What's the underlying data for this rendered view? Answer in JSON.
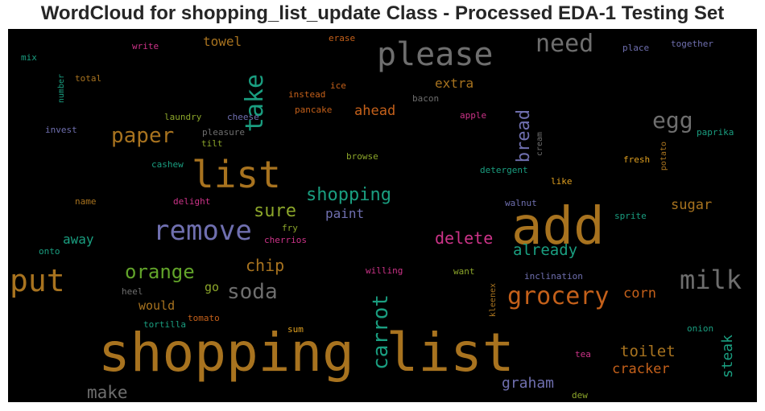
{
  "title": "WordCloud for shopping_list_update Class - Processed EDA-1 Testing Set",
  "chart_data": {
    "type": "wordcloud",
    "background": "#000000",
    "words": [
      {
        "text": "shopping list",
        "weight": 1.0,
        "color": "#A8731F"
      },
      {
        "text": "add",
        "weight": 0.78,
        "color": "#A8731F"
      },
      {
        "text": "please",
        "weight": 0.55,
        "color": "#6E6E6E"
      },
      {
        "text": "list",
        "weight": 0.6,
        "color": "#A8731F"
      },
      {
        "text": "remove",
        "weight": 0.48,
        "color": "#6F6FAF"
      },
      {
        "text": "put",
        "weight": 0.52,
        "color": "#A8731F"
      },
      {
        "text": "milk",
        "weight": 0.45,
        "color": "#6E6E6E"
      },
      {
        "text": "grocery",
        "weight": 0.42,
        "color": "#C4601A"
      },
      {
        "text": "take",
        "weight": 0.4,
        "color": "#1A9E80"
      },
      {
        "text": "carrot",
        "weight": 0.38,
        "color": "#1A9E80"
      },
      {
        "text": "need",
        "weight": 0.4,
        "color": "#6E6E6E"
      },
      {
        "text": "egg",
        "weight": 0.38,
        "color": "#6E6E6E"
      },
      {
        "text": "paper",
        "weight": 0.34,
        "color": "#A8731F"
      },
      {
        "text": "orange",
        "weight": 0.34,
        "color": "#62A42A"
      },
      {
        "text": "soda",
        "weight": 0.34,
        "color": "#6E6E6E"
      },
      {
        "text": "bread",
        "weight": 0.32,
        "color": "#6F6FAF"
      },
      {
        "text": "shopping",
        "weight": 0.3,
        "color": "#1A9E80"
      },
      {
        "text": "sure",
        "weight": 0.28,
        "color": "#8CA62A"
      },
      {
        "text": "delete",
        "weight": 0.27,
        "color": "#CC3388"
      },
      {
        "text": "already",
        "weight": 0.26,
        "color": "#1A9E80"
      },
      {
        "text": "chip",
        "weight": 0.26,
        "color": "#A8731F"
      },
      {
        "text": "toilet",
        "weight": 0.24,
        "color": "#A8731F"
      },
      {
        "text": "make",
        "weight": 0.26,
        "color": "#6E6E6E"
      },
      {
        "text": "cracker",
        "weight": 0.22,
        "color": "#C4601A"
      },
      {
        "text": "graham",
        "weight": 0.22,
        "color": "#6F6FAF"
      },
      {
        "text": "steak",
        "weight": 0.22,
        "color": "#1A9E80"
      },
      {
        "text": "corn",
        "weight": 0.22,
        "color": "#C4601A"
      },
      {
        "text": "sugar",
        "weight": 0.22,
        "color": "#A8731F"
      },
      {
        "text": "ahead",
        "weight": 0.22,
        "color": "#C4601A"
      },
      {
        "text": "extra",
        "weight": 0.22,
        "color": "#A8731F"
      },
      {
        "text": "towel",
        "weight": 0.2,
        "color": "#A8731F"
      },
      {
        "text": "paint",
        "weight": 0.2,
        "color": "#6F6FAF"
      },
      {
        "text": "away",
        "weight": 0.2,
        "color": "#1A9E80"
      },
      {
        "text": "would",
        "weight": 0.2,
        "color": "#A8731F"
      },
      {
        "text": "go",
        "weight": 0.2,
        "color": "#8CA62A"
      },
      {
        "text": "write",
        "weight": 0.14,
        "color": "#CC3388"
      },
      {
        "text": "erase",
        "weight": 0.13,
        "color": "#C4601A"
      },
      {
        "text": "place",
        "weight": 0.14,
        "color": "#6F6FAF"
      },
      {
        "text": "together",
        "weight": 0.14,
        "color": "#6F6FAF"
      },
      {
        "text": "mix",
        "weight": 0.13,
        "color": "#1A9E80"
      },
      {
        "text": "number",
        "weight": 0.12,
        "color": "#1A9E80"
      },
      {
        "text": "total",
        "weight": 0.13,
        "color": "#A8731F"
      },
      {
        "text": "ice",
        "weight": 0.13,
        "color": "#C4601A"
      },
      {
        "text": "instead",
        "weight": 0.14,
        "color": "#C4601A"
      },
      {
        "text": "bacon",
        "weight": 0.13,
        "color": "#6E6E6E"
      },
      {
        "text": "laundry",
        "weight": 0.14,
        "color": "#8CA62A"
      },
      {
        "text": "cheese",
        "weight": 0.14,
        "color": "#6F6FAF"
      },
      {
        "text": "pancake",
        "weight": 0.14,
        "color": "#C4601A"
      },
      {
        "text": "apple",
        "weight": 0.14,
        "color": "#CC3388"
      },
      {
        "text": "invest",
        "weight": 0.14,
        "color": "#6F6FAF"
      },
      {
        "text": "pleasure",
        "weight": 0.14,
        "color": "#6E6E6E"
      },
      {
        "text": "tilt",
        "weight": 0.14,
        "color": "#8CA62A"
      },
      {
        "text": "cream",
        "weight": 0.12,
        "color": "#6E6E6E"
      },
      {
        "text": "paprika",
        "weight": 0.14,
        "color": "#1A9E80"
      },
      {
        "text": "browse",
        "weight": 0.14,
        "color": "#8CA62A"
      },
      {
        "text": "fresh",
        "weight": 0.14,
        "color": "#E0A020"
      },
      {
        "text": "potato",
        "weight": 0.12,
        "color": "#A8731F"
      },
      {
        "text": "cashew",
        "weight": 0.14,
        "color": "#1A9E80"
      },
      {
        "text": "detergent",
        "weight": 0.14,
        "color": "#1A9E80"
      },
      {
        "text": "like",
        "weight": 0.14,
        "color": "#E0A020"
      },
      {
        "text": "name",
        "weight": 0.13,
        "color": "#A8731F"
      },
      {
        "text": "delight",
        "weight": 0.13,
        "color": "#CC3388"
      },
      {
        "text": "walnut",
        "weight": 0.14,
        "color": "#6F6FAF"
      },
      {
        "text": "sprite",
        "weight": 0.14,
        "color": "#1A9E80"
      },
      {
        "text": "fry",
        "weight": 0.14,
        "color": "#8CA62A"
      },
      {
        "text": "cherrios",
        "weight": 0.13,
        "color": "#CC3388"
      },
      {
        "text": "onto",
        "weight": 0.13,
        "color": "#1A9E80"
      },
      {
        "text": "willing",
        "weight": 0.14,
        "color": "#CC3388"
      },
      {
        "text": "want",
        "weight": 0.14,
        "color": "#8CA62A"
      },
      {
        "text": "inclination",
        "weight": 0.14,
        "color": "#6F6FAF"
      },
      {
        "text": "heel",
        "weight": 0.13,
        "color": "#6E6E6E"
      },
      {
        "text": "kleenex",
        "weight": 0.12,
        "color": "#A8731F"
      },
      {
        "text": "tortilla",
        "weight": 0.14,
        "color": "#1A9E80"
      },
      {
        "text": "tomato",
        "weight": 0.13,
        "color": "#C4601A"
      },
      {
        "text": "sum",
        "weight": 0.12,
        "color": "#E0A020"
      },
      {
        "text": "onion",
        "weight": 0.14,
        "color": "#1A9E80"
      },
      {
        "text": "tea",
        "weight": 0.13,
        "color": "#CC3388"
      },
      {
        "text": "dew",
        "weight": 0.13,
        "color": "#8CA62A"
      }
    ]
  }
}
